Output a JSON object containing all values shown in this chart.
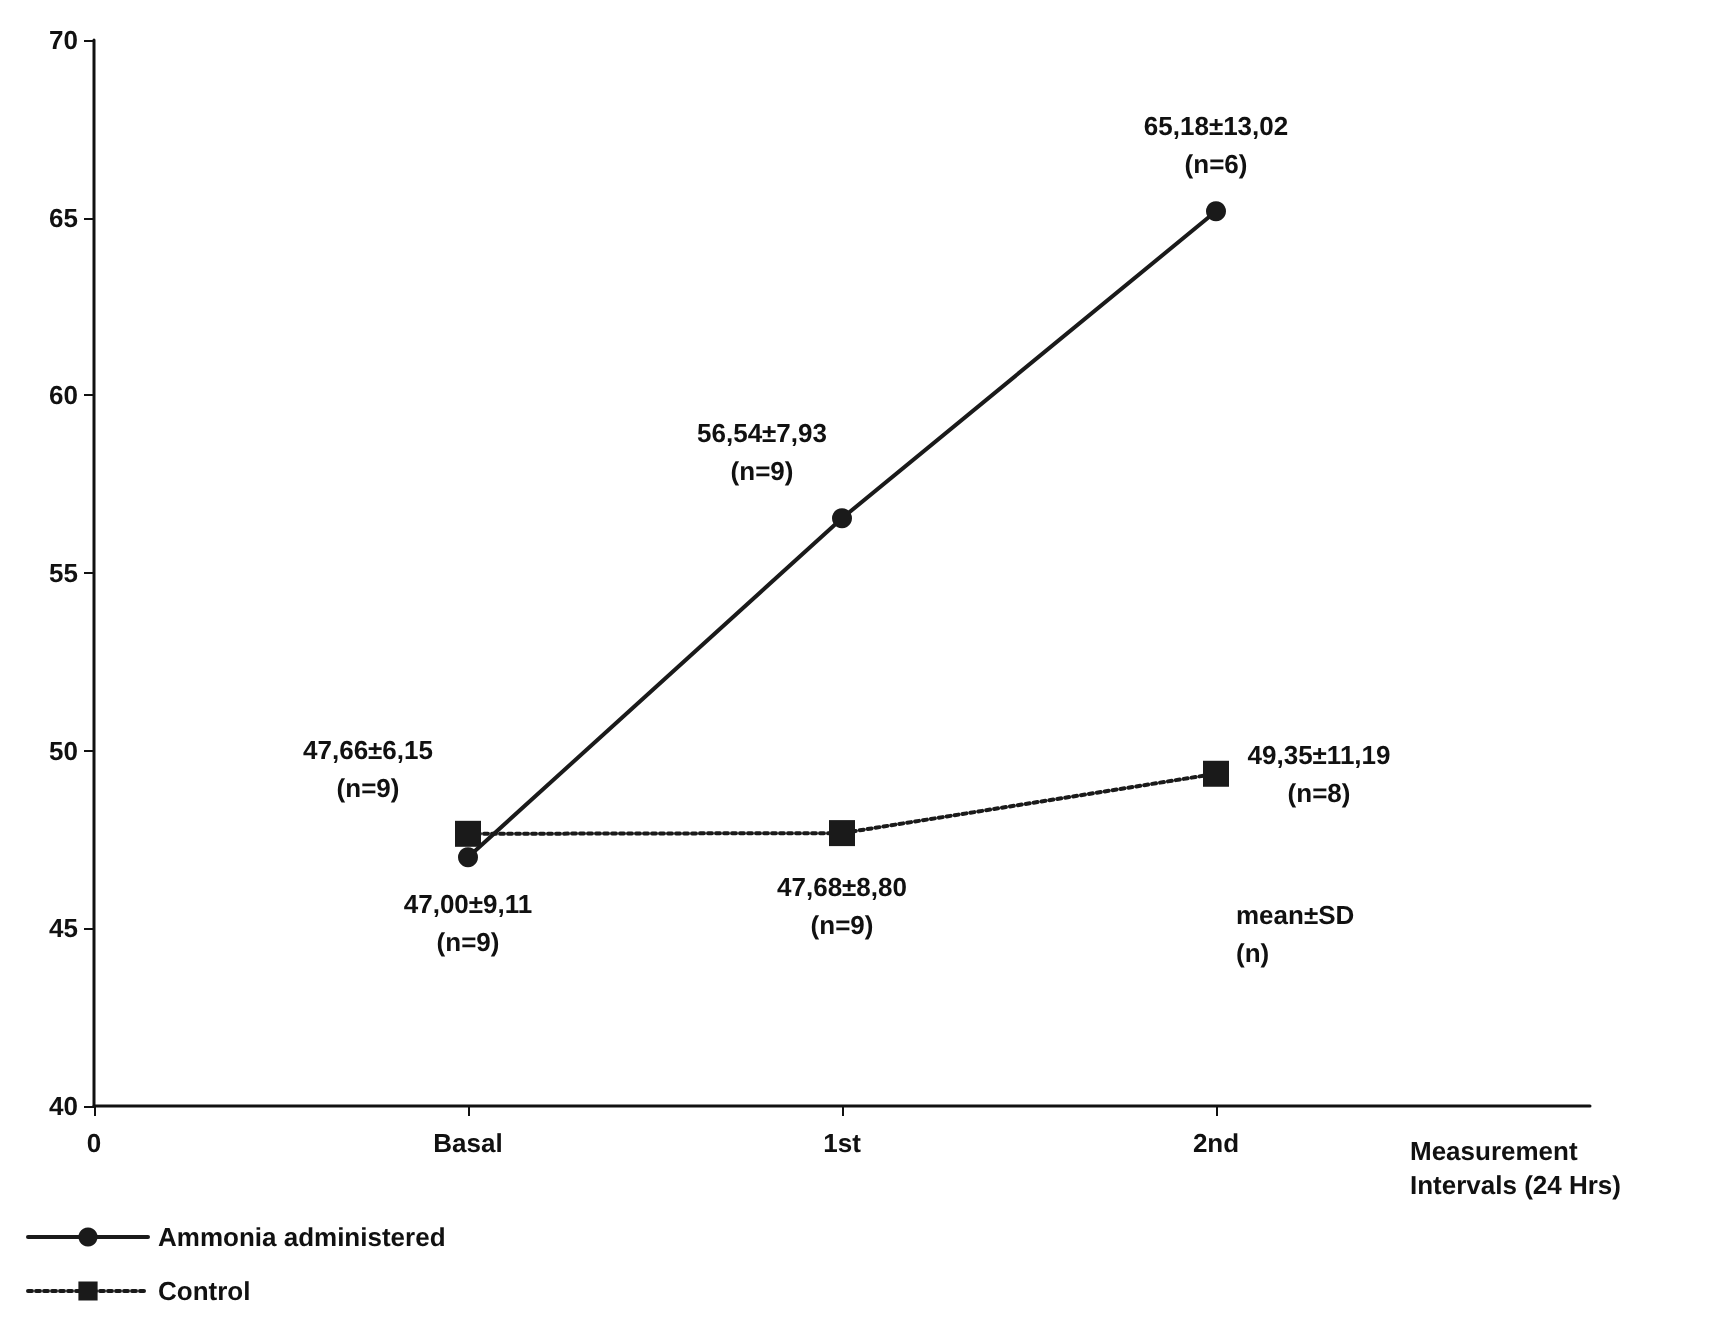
{
  "chart_data": {
    "type": "line",
    "categories": [
      "0",
      "Basal",
      "1st",
      "2nd",
      null
    ],
    "xlabel": "Measurement\nIntervals (24 Hrs)",
    "ylim": [
      40,
      70
    ],
    "yticks": [
      40,
      45,
      50,
      55,
      60,
      65,
      70
    ],
    "series": [
      {
        "name": "Ammonia administered",
        "color": "#1a1a1a",
        "marker": "circle",
        "line_style": "solid",
        "values": [
          null,
          47.0,
          56.54,
          65.18,
          null
        ],
        "value_labels": [
          null,
          "47,00±9,11\n(n=9)",
          "56,54±7,93\n(n=9)",
          "65,18±13,02\n(n=6)",
          null
        ]
      },
      {
        "name": "Control",
        "color": "#1a1a1a",
        "marker": "square",
        "line_style": "dotted",
        "values": [
          null,
          47.66,
          47.68,
          49.35,
          null
        ],
        "value_labels": [
          null,
          "47,66±6,15\n(n=9)",
          "47,68±8,80\n(n=9)",
          "49,35±11,19\n(n=8)",
          null
        ]
      }
    ],
    "annotations": [
      "mean±SD\n(n)"
    ],
    "legend": "bottom left",
    "grid": false
  }
}
